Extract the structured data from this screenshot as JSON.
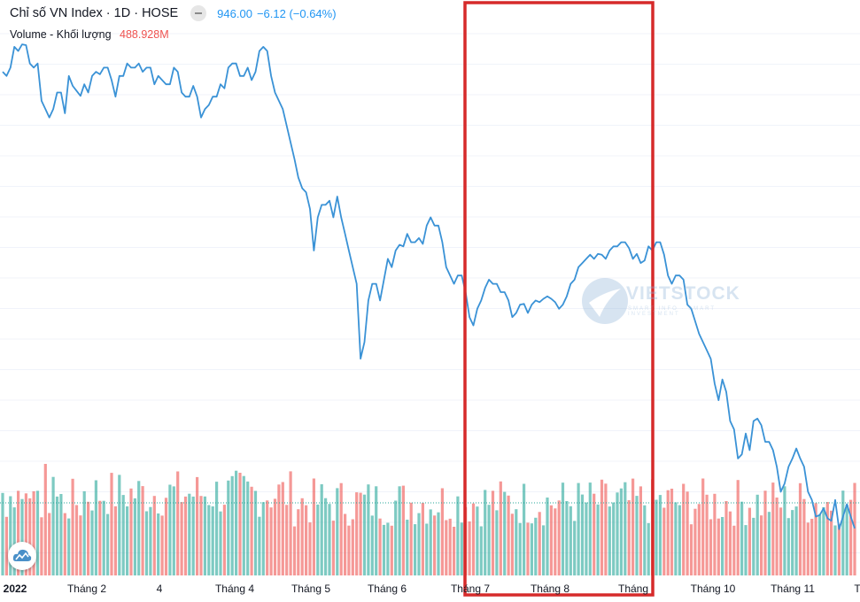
{
  "header": {
    "title": "Chỉ số VN Index · 1D · HOSE",
    "price": "946.00",
    "change": "−6.12 (−0.64%)"
  },
  "volume_legend": {
    "label": "Volume - Khối lượng",
    "value": "488.928M"
  },
  "watermark": {
    "text": "VIETSTOCK",
    "subtext": "SMART INFO · SMART INVESTMENT"
  },
  "colors": {
    "line": "#3a92d6",
    "volume_up": "#26a69a",
    "volume_down": "#ef5350",
    "highlight_box": "#d62a2a",
    "grid": "#f0f3fa"
  },
  "chart_data": {
    "type": "line",
    "x_tick_labels": [
      "2022",
      "Tháng 2",
      "4",
      "Tháng 4",
      "Tháng 5",
      "Tháng 6",
      "Tháng 7",
      "Tháng 8",
      "Tháng",
      "Tháng 10",
      "Tháng 11",
      "T"
    ],
    "grid": true,
    "series": [
      {
        "kind": "price",
        "values": [
          1495,
          1490,
          1500,
          1525,
          1520,
          1528,
          1527,
          1505,
          1500,
          1505,
          1460,
          1450,
          1440,
          1450,
          1470,
          1470,
          1445,
          1490,
          1478,
          1472,
          1466,
          1480,
          1470,
          1490,
          1495,
          1492,
          1500,
          1500,
          1485,
          1465,
          1490,
          1490,
          1505,
          1500,
          1500,
          1505,
          1495,
          1500,
          1500,
          1480,
          1490,
          1485,
          1480,
          1480,
          1500,
          1495,
          1470,
          1465,
          1465,
          1478,
          1465,
          1440,
          1450,
          1455,
          1465,
          1465,
          1480,
          1475,
          1500,
          1505,
          1505,
          1490,
          1490,
          1500,
          1485,
          1495,
          1520,
          1525,
          1520,
          1490,
          1470,
          1460,
          1450,
          1430,
          1410,
          1390,
          1368,
          1355,
          1350,
          1330,
          1280,
          1320,
          1335,
          1335,
          1340,
          1320,
          1345,
          1320,
          1300,
          1280,
          1260,
          1240,
          1150,
          1170,
          1220,
          1240,
          1240,
          1220,
          1245,
          1270,
          1260,
          1280,
          1287,
          1285,
          1300,
          1290,
          1290,
          1295,
          1288,
          1310,
          1320,
          1310,
          1310,
          1290,
          1260,
          1250,
          1240,
          1250,
          1250,
          1230,
          1200,
          1190,
          1210,
          1220,
          1235,
          1245,
          1240,
          1240,
          1230,
          1230,
          1220,
          1200,
          1205,
          1215,
          1216,
          1205,
          1215,
          1220,
          1218,
          1222,
          1225,
          1222,
          1218,
          1210,
          1215,
          1225,
          1240,
          1245,
          1260,
          1265,
          1270,
          1275,
          1270,
          1276,
          1275,
          1270,
          1280,
          1285,
          1285,
          1290,
          1290,
          1283,
          1270,
          1276,
          1265,
          1268,
          1285,
          1280,
          1290,
          1290,
          1275,
          1250,
          1240,
          1250,
          1250,
          1245,
          1215,
          1210,
          1195,
          1180,
          1170,
          1160,
          1150,
          1120,
          1100,
          1125,
          1110,
          1075,
          1065,
          1030,
          1035,
          1060,
          1040,
          1075,
          1078,
          1070,
          1050,
          1050,
          1040,
          1020,
          990,
          1000,
          1020,
          1030,
          1042,
          1030,
          1020,
          990,
          980,
          960,
          962,
          970,
          958,
          955,
          980,
          945,
          960,
          975,
          960,
          946
        ],
        "y_range": [
          900,
          1560
        ]
      },
      {
        "kind": "volume",
        "note": "relative bar heights"
      }
    ]
  }
}
